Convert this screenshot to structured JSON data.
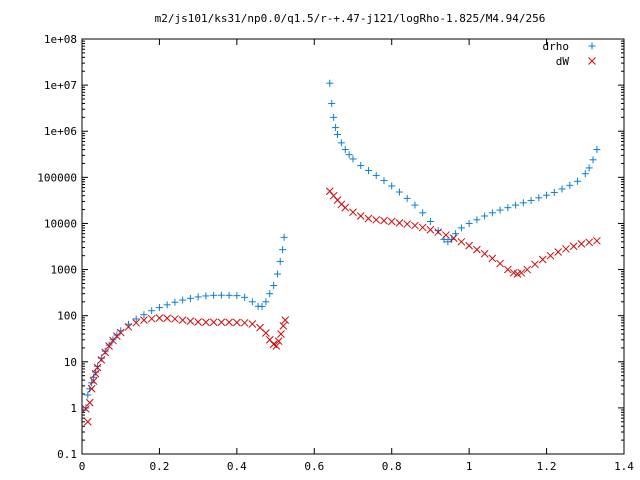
{
  "chart_data": {
    "type": "scatter",
    "title": "m2/js101/ks31/np0.0/q1.5/r-+.47-j121/logRho-1.825/M4.94/256",
    "xlabel": "",
    "ylabel": "",
    "xlim": [
      0,
      1.4
    ],
    "ylim": [
      0.1,
      100000000
    ],
    "yscale": "log",
    "grid": false,
    "legend": "top-right",
    "x_ticks": [
      "0",
      "0.2",
      "0.4",
      "0.6",
      "0.8",
      "1",
      "1.2",
      "1.4"
    ],
    "y_ticks": [
      "0.1",
      "1",
      "10",
      "100",
      "1000",
      "10000",
      "100000",
      "1e+06",
      "1e+07",
      "1e+08"
    ],
    "series": [
      {
        "name": "drho",
        "marker": "+",
        "color": "#0a7fd6",
        "points": [
          [
            0.01,
            1.0
          ],
          [
            0.015,
            1.9
          ],
          [
            0.02,
            2.6
          ],
          [
            0.025,
            3.5
          ],
          [
            0.03,
            4.6
          ],
          [
            0.035,
            6.0
          ],
          [
            0.04,
            8.0
          ],
          [
            0.05,
            12
          ],
          [
            0.06,
            17
          ],
          [
            0.07,
            23
          ],
          [
            0.08,
            30
          ],
          [
            0.09,
            38
          ],
          [
            0.1,
            47
          ],
          [
            0.12,
            65
          ],
          [
            0.14,
            85
          ],
          [
            0.16,
            105
          ],
          [
            0.18,
            128
          ],
          [
            0.2,
            150
          ],
          [
            0.22,
            172
          ],
          [
            0.24,
            195
          ],
          [
            0.26,
            218
          ],
          [
            0.28,
            238
          ],
          [
            0.3,
            255
          ],
          [
            0.32,
            268
          ],
          [
            0.34,
            276
          ],
          [
            0.36,
            278
          ],
          [
            0.38,
            276
          ],
          [
            0.4,
            272
          ],
          [
            0.42,
            250
          ],
          [
            0.44,
            200
          ],
          [
            0.455,
            160
          ],
          [
            0.465,
            158
          ],
          [
            0.475,
            200
          ],
          [
            0.485,
            300
          ],
          [
            0.495,
            450
          ],
          [
            0.505,
            800
          ],
          [
            0.512,
            1500
          ],
          [
            0.518,
            2700
          ],
          [
            0.522,
            5000
          ],
          [
            0.64,
            11000000
          ],
          [
            0.645,
            4000000
          ],
          [
            0.65,
            2000000
          ],
          [
            0.655,
            1200000
          ],
          [
            0.66,
            850000
          ],
          [
            0.67,
            560000
          ],
          [
            0.68,
            400000
          ],
          [
            0.69,
            310000
          ],
          [
            0.7,
            250000
          ],
          [
            0.72,
            180000
          ],
          [
            0.74,
            140000
          ],
          [
            0.76,
            110000
          ],
          [
            0.78,
            85000
          ],
          [
            0.8,
            65000
          ],
          [
            0.82,
            48000
          ],
          [
            0.84,
            35000
          ],
          [
            0.86,
            25000
          ],
          [
            0.88,
            17000
          ],
          [
            0.9,
            11000
          ],
          [
            0.92,
            7000
          ],
          [
            0.935,
            4500
          ],
          [
            0.945,
            4000
          ],
          [
            0.955,
            4500
          ],
          [
            0.965,
            6000
          ],
          [
            0.98,
            8000
          ],
          [
            1.0,
            10000
          ],
          [
            1.02,
            12000
          ],
          [
            1.04,
            14500
          ],
          [
            1.06,
            17000
          ],
          [
            1.08,
            19500
          ],
          [
            1.1,
            22000
          ],
          [
            1.12,
            25000
          ],
          [
            1.14,
            28000
          ],
          [
            1.16,
            31500
          ],
          [
            1.18,
            36000
          ],
          [
            1.2,
            41000
          ],
          [
            1.22,
            47000
          ],
          [
            1.24,
            56000
          ],
          [
            1.26,
            67000
          ],
          [
            1.28,
            82000
          ],
          [
            1.3,
            120000
          ],
          [
            1.31,
            160000
          ],
          [
            1.32,
            240000
          ],
          [
            1.33,
            400000
          ]
        ]
      },
      {
        "name": "dW",
        "marker": "x",
        "color": "#d10a0a",
        "points": [
          [
            0.01,
            0.95
          ],
          [
            0.015,
            0.5
          ],
          [
            0.02,
            1.3
          ],
          [
            0.025,
            2.6
          ],
          [
            0.03,
            3.8
          ],
          [
            0.035,
            5.5
          ],
          [
            0.04,
            7.5
          ],
          [
            0.05,
            11
          ],
          [
            0.06,
            16
          ],
          [
            0.07,
            22
          ],
          [
            0.08,
            29
          ],
          [
            0.09,
            36
          ],
          [
            0.1,
            43
          ],
          [
            0.12,
            57
          ],
          [
            0.14,
            70
          ],
          [
            0.16,
            80
          ],
          [
            0.18,
            86
          ],
          [
            0.2,
            89
          ],
          [
            0.22,
            88
          ],
          [
            0.24,
            85
          ],
          [
            0.26,
            80
          ],
          [
            0.28,
            76
          ],
          [
            0.3,
            73
          ],
          [
            0.32,
            72
          ],
          [
            0.34,
            72
          ],
          [
            0.36,
            72
          ],
          [
            0.38,
            72
          ],
          [
            0.4,
            71
          ],
          [
            0.42,
            70
          ],
          [
            0.44,
            66
          ],
          [
            0.46,
            55
          ],
          [
            0.475,
            42
          ],
          [
            0.485,
            30
          ],
          [
            0.495,
            24
          ],
          [
            0.502,
            22
          ],
          [
            0.508,
            28
          ],
          [
            0.514,
            40
          ],
          [
            0.52,
            60
          ],
          [
            0.525,
            80
          ],
          [
            0.64,
            50000
          ],
          [
            0.65,
            40000
          ],
          [
            0.66,
            32000
          ],
          [
            0.67,
            26000
          ],
          [
            0.68,
            22000
          ],
          [
            0.7,
            17500
          ],
          [
            0.72,
            14500
          ],
          [
            0.74,
            12800
          ],
          [
            0.76,
            12000
          ],
          [
            0.78,
            11500
          ],
          [
            0.8,
            11000
          ],
          [
            0.82,
            10300
          ],
          [
            0.84,
            9700
          ],
          [
            0.86,
            9000
          ],
          [
            0.88,
            8200
          ],
          [
            0.9,
            7300
          ],
          [
            0.92,
            6500
          ],
          [
            0.94,
            5600
          ],
          [
            0.96,
            4800
          ],
          [
            0.98,
            4000
          ],
          [
            1.0,
            3300
          ],
          [
            1.02,
            2700
          ],
          [
            1.04,
            2200
          ],
          [
            1.06,
            1750
          ],
          [
            1.08,
            1350
          ],
          [
            1.1,
            1000
          ],
          [
            1.115,
            850
          ],
          [
            1.125,
            800
          ],
          [
            1.135,
            850
          ],
          [
            1.15,
            1000
          ],
          [
            1.17,
            1300
          ],
          [
            1.19,
            1650
          ],
          [
            1.21,
            2000
          ],
          [
            1.23,
            2400
          ],
          [
            1.25,
            2800
          ],
          [
            1.27,
            3200
          ],
          [
            1.29,
            3600
          ],
          [
            1.31,
            3900
          ],
          [
            1.33,
            4200
          ]
        ]
      }
    ]
  }
}
